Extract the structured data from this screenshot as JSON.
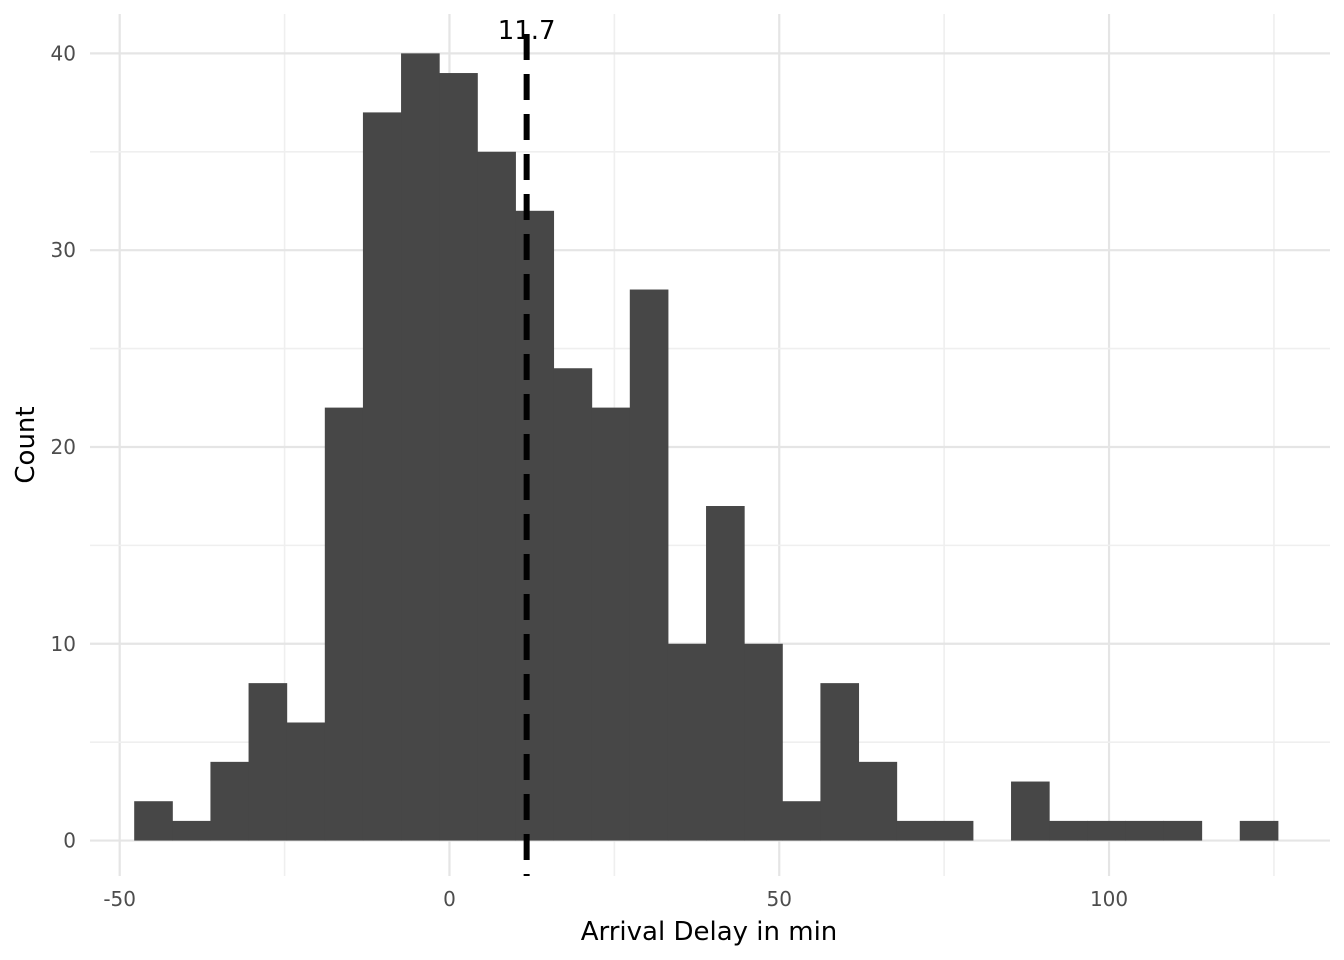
{
  "chart_data": {
    "type": "bar",
    "title": "",
    "xlabel": "Arrival Delay in min",
    "ylabel": "Count",
    "xlim": [
      -54.5,
      133.5
    ],
    "ylim": [
      -1.8,
      42
    ],
    "x_ticks": [
      -50,
      0,
      50,
      100
    ],
    "x_tick_labels": [
      "-50",
      "0",
      "50",
      "100"
    ],
    "y_ticks": [
      0,
      10,
      20,
      30,
      40
    ],
    "y_tick_labels": [
      "0",
      "10",
      "20",
      "30",
      "40"
    ],
    "grid": true,
    "legend": "none",
    "bar_color": "#474747",
    "bins": {
      "start": -47.8,
      "width": 5.78,
      "counts": [
        2,
        1,
        4,
        8,
        6,
        22,
        37,
        40,
        39,
        35,
        32,
        24,
        22,
        28,
        10,
        17,
        10,
        2,
        8,
        4,
        1,
        1,
        0,
        3,
        1,
        1,
        1,
        1,
        0,
        1
      ]
    },
    "mean_line": {
      "value": 11.7,
      "label": "11.7",
      "style": "dashed",
      "color": "#000000"
    }
  }
}
